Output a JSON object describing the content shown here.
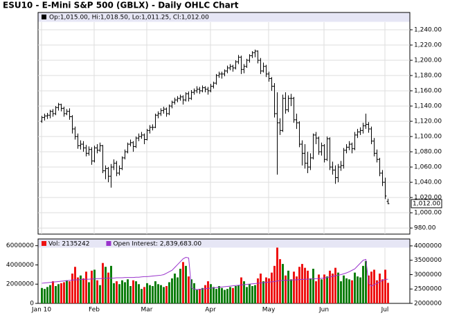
{
  "chart_data": [
    {
      "type": "ohlc",
      "title": "ESU10 - E-Mini S&P 500 (GBLX) - Daily OHLC Chart",
      "info": "Op:1,015.00, Hi:1,018.50, Lo:1,011.25, Cl:1,012.00",
      "last_label": "1,012.00",
      "color": "#000000",
      "grid": true,
      "categories": [
        "Jan 10",
        null,
        null,
        null,
        null,
        null,
        null,
        null,
        null,
        null,
        null,
        null,
        null,
        null,
        null,
        null,
        null,
        null,
        null,
        "Feb",
        null,
        null,
        null,
        null,
        null,
        null,
        null,
        null,
        null,
        null,
        null,
        null,
        null,
        null,
        null,
        null,
        null,
        null,
        "Mar",
        null,
        null,
        null,
        null,
        null,
        null,
        null,
        null,
        null,
        null,
        null,
        null,
        null,
        null,
        null,
        null,
        null,
        null,
        null,
        null,
        null,
        null,
        "Apr",
        null,
        null,
        null,
        null,
        null,
        null,
        null,
        null,
        null,
        null,
        null,
        null,
        null,
        null,
        null,
        null,
        null,
        null,
        null,
        null,
        "May",
        null,
        null,
        null,
        null,
        null,
        null,
        null,
        null,
        null,
        null,
        null,
        null,
        null,
        null,
        null,
        null,
        null,
        null,
        null,
        "Jun",
        null,
        null,
        null,
        null,
        null,
        null,
        null,
        null,
        null,
        null,
        null,
        null,
        null,
        null,
        null,
        null,
        null,
        null,
        null,
        null,
        null,
        "Jul",
        null
      ],
      "ohlc": [
        [
          1120,
          1127,
          1118,
          1125
        ],
        [
          1125,
          1130,
          1121,
          1127
        ],
        [
          1127,
          1131,
          1123,
          1128
        ],
        [
          1128,
          1135,
          1124,
          1133
        ],
        [
          1133,
          1136,
          1126,
          1130
        ],
        [
          1130,
          1140,
          1128,
          1138
        ],
        [
          1138,
          1144,
          1134,
          1142
        ],
        [
          1142,
          1143,
          1133,
          1137
        ],
        [
          1137,
          1139,
          1126,
          1130
        ],
        [
          1130,
          1136,
          1128,
          1133
        ],
        [
          1133,
          1137,
          1122,
          1126
        ],
        [
          1126,
          1128,
          1104,
          1110
        ],
        [
          1110,
          1113,
          1096,
          1100
        ],
        [
          1100,
          1104,
          1084,
          1088
        ],
        [
          1088,
          1095,
          1083,
          1090
        ],
        [
          1090,
          1094,
          1080,
          1085
        ],
        [
          1085,
          1089,
          1074,
          1078
        ],
        [
          1078,
          1087,
          1075,
          1083
        ],
        [
          1083,
          1086,
          1063,
          1068
        ],
        [
          1068,
          1088,
          1066,
          1085
        ],
        [
          1085,
          1090,
          1078,
          1082
        ],
        [
          1082,
          1092,
          1080,
          1088
        ],
        [
          1088,
          1089,
          1052,
          1055
        ],
        [
          1055,
          1062,
          1044,
          1058
        ],
        [
          1058,
          1060,
          1040,
          1048
        ],
        [
          1048,
          1064,
          1033,
          1060
        ],
        [
          1060,
          1070,
          1056,
          1065
        ],
        [
          1065,
          1068,
          1048,
          1052
        ],
        [
          1052,
          1062,
          1049,
          1058
        ],
        [
          1058,
          1074,
          1056,
          1072
        ],
        [
          1072,
          1083,
          1070,
          1080
        ],
        [
          1080,
          1092,
          1078,
          1090
        ],
        [
          1090,
          1096,
          1087,
          1092
        ],
        [
          1092,
          1094,
          1080,
          1087
        ],
        [
          1087,
          1100,
          1085,
          1098
        ],
        [
          1098,
          1104,
          1094,
          1100
        ],
        [
          1100,
          1106,
          1097,
          1102
        ],
        [
          1102,
          1104,
          1090,
          1096
        ],
        [
          1096,
          1110,
          1095,
          1108
        ],
        [
          1108,
          1115,
          1104,
          1112
        ],
        [
          1112,
          1116,
          1108,
          1112
        ],
        [
          1112,
          1130,
          1111,
          1128
        ],
        [
          1128,
          1133,
          1124,
          1130
        ],
        [
          1130,
          1137,
          1127,
          1134
        ],
        [
          1134,
          1139,
          1130,
          1136
        ],
        [
          1136,
          1138,
          1126,
          1130
        ],
        [
          1130,
          1142,
          1128,
          1140
        ],
        [
          1140,
          1147,
          1137,
          1145
        ],
        [
          1145,
          1151,
          1142,
          1148
        ],
        [
          1148,
          1153,
          1145,
          1150
        ],
        [
          1150,
          1155,
          1147,
          1152
        ],
        [
          1152,
          1154,
          1142,
          1148
        ],
        [
          1148,
          1158,
          1146,
          1156
        ],
        [
          1156,
          1159,
          1146,
          1150
        ],
        [
          1150,
          1161,
          1148,
          1158
        ],
        [
          1158,
          1163,
          1155,
          1160
        ],
        [
          1160,
          1166,
          1157,
          1162
        ],
        [
          1162,
          1165,
          1156,
          1160
        ],
        [
          1160,
          1167,
          1158,
          1164
        ],
        [
          1164,
          1166,
          1158,
          1162
        ],
        [
          1162,
          1165,
          1155,
          1160
        ],
        [
          1160,
          1169,
          1158,
          1166
        ],
        [
          1166,
          1172,
          1163,
          1170
        ],
        [
          1170,
          1182,
          1168,
          1180
        ],
        [
          1180,
          1185,
          1177,
          1182
        ],
        [
          1182,
          1185,
          1176,
          1182
        ],
        [
          1182,
          1188,
          1179,
          1186
        ],
        [
          1186,
          1193,
          1183,
          1190
        ],
        [
          1190,
          1195,
          1187,
          1192
        ],
        [
          1192,
          1194,
          1185,
          1190
        ],
        [
          1190,
          1200,
          1188,
          1198
        ],
        [
          1198,
          1207,
          1195,
          1204
        ],
        [
          1204,
          1206,
          1182,
          1188
        ],
        [
          1188,
          1195,
          1183,
          1192
        ],
        [
          1192,
          1202,
          1190,
          1200
        ],
        [
          1200,
          1208,
          1197,
          1206
        ],
        [
          1206,
          1212,
          1203,
          1210
        ],
        [
          1210,
          1214,
          1204,
          1212
        ],
        [
          1212,
          1213,
          1196,
          1200
        ],
        [
          1200,
          1203,
          1182,
          1186
        ],
        [
          1186,
          1197,
          1184,
          1192
        ],
        [
          1192,
          1194,
          1178,
          1182
        ],
        [
          1182,
          1185,
          1172,
          1176
        ],
        [
          1176,
          1178,
          1160,
          1166
        ],
        [
          1166,
          1170,
          1125,
          1130
        ],
        [
          1130,
          1158,
          1050,
          1118
        ],
        [
          1118,
          1124,
          1102,
          1108
        ],
        [
          1108,
          1155,
          1106,
          1150
        ],
        [
          1150,
          1158,
          1130,
          1135
        ],
        [
          1135,
          1154,
          1132,
          1150
        ],
        [
          1150,
          1156,
          1140,
          1150
        ],
        [
          1150,
          1152,
          1118,
          1122
        ],
        [
          1122,
          1130,
          1110,
          1118
        ],
        [
          1118,
          1120,
          1086,
          1090
        ],
        [
          1090,
          1095,
          1062,
          1078
        ],
        [
          1078,
          1090,
          1058,
          1065
        ],
        [
          1065,
          1080,
          1052,
          1060
        ],
        [
          1060,
          1078,
          1056,
          1072
        ],
        [
          1072,
          1104,
          1070,
          1102
        ],
        [
          1102,
          1106,
          1090,
          1098
        ],
        [
          1098,
          1100,
          1076,
          1080
        ],
        [
          1080,
          1092,
          1075,
          1088
        ],
        [
          1088,
          1090,
          1066,
          1070
        ],
        [
          1070,
          1100,
          1068,
          1097
        ],
        [
          1097,
          1099,
          1056,
          1060
        ],
        [
          1060,
          1067,
          1050,
          1056
        ],
        [
          1056,
          1062,
          1038,
          1046
        ],
        [
          1046,
          1064,
          1040,
          1060
        ],
        [
          1060,
          1068,
          1055,
          1062
        ],
        [
          1062,
          1085,
          1058,
          1082
        ],
        [
          1082,
          1090,
          1078,
          1086
        ],
        [
          1086,
          1094,
          1082,
          1090
        ],
        [
          1090,
          1092,
          1078,
          1084
        ],
        [
          1084,
          1106,
          1082,
          1102
        ],
        [
          1102,
          1110,
          1098,
          1106
        ],
        [
          1106,
          1112,
          1102,
          1108
        ],
        [
          1108,
          1118,
          1104,
          1114
        ],
        [
          1114,
          1130,
          1110,
          1116
        ],
        [
          1116,
          1119,
          1105,
          1110
        ],
        [
          1110,
          1113,
          1090,
          1094
        ],
        [
          1094,
          1098,
          1074,
          1078
        ],
        [
          1078,
          1083,
          1066,
          1070
        ],
        [
          1070,
          1072,
          1048,
          1052
        ],
        [
          1052,
          1056,
          1035,
          1040
        ],
        [
          1040,
          1046,
          1018,
          1022
        ],
        [
          1015,
          1018.5,
          1011.25,
          1012
        ]
      ],
      "ylim": [
        972,
        1250
      ],
      "yticks": [
        {
          "value": 980,
          "label": "980.00"
        },
        {
          "value": 1000,
          "label": "1,000.00"
        },
        {
          "value": 1020,
          "label": "1,020.00"
        },
        {
          "value": 1040,
          "label": "1,040.00"
        },
        {
          "value": 1060,
          "label": "1,060.00"
        },
        {
          "value": 1080,
          "label": "1,080.00"
        },
        {
          "value": 1100,
          "label": "1,100.00"
        },
        {
          "value": 1120,
          "label": "1,120.00"
        },
        {
          "value": 1140,
          "label": "1,140.00"
        },
        {
          "value": 1160,
          "label": "1,160.00"
        },
        {
          "value": 1180,
          "label": "1,180.00"
        },
        {
          "value": 1200,
          "label": "1,200.00"
        },
        {
          "value": 1220,
          "label": "1,220.00"
        },
        {
          "value": 1240,
          "label": "1,240.00"
        }
      ]
    },
    {
      "type": "bar",
      "up_color": "#0a7d0a",
      "down_color": "#ee1111",
      "series": [
        {
          "name": "Vol: 2135242",
          "color": "#ee1111",
          "values": [
            1600000,
            1500000,
            1700000,
            1900000,
            2300000,
            1800000,
            2000000,
            2100000,
            2200000,
            2400000,
            2300000,
            3100000,
            3800000,
            2700000,
            2900000,
            2600000,
            3300000,
            2200000,
            3400000,
            3500000,
            2400000,
            1900000,
            4200000,
            3800000,
            3200000,
            3900000,
            2100000,
            2300000,
            2000000,
            2400000,
            2200000,
            2500000,
            1800000,
            2400000,
            2300000,
            2000000,
            1500000,
            1700000,
            2100000,
            1900000,
            1800000,
            2300000,
            2000000,
            1900000,
            1700000,
            1800000,
            2200000,
            2600000,
            3100000,
            2700000,
            3600000,
            4300000,
            3900000,
            2800000,
            2500000,
            2100000,
            1400000,
            1500000,
            1600000,
            1900000,
            2300000,
            2000000,
            1700000,
            1500000,
            1800000,
            1600000,
            1400000,
            1500000,
            1700000,
            1600000,
            1800000,
            1900000,
            2700000,
            2300000,
            1700000,
            2000000,
            1800000,
            1900000,
            2600000,
            3100000,
            2300000,
            2700000,
            2600000,
            3200000,
            3900000,
            5800000,
            4600000,
            4100000,
            2900000,
            3400000,
            2500000,
            3300000,
            2800000,
            3800000,
            4100000,
            3700000,
            3400000,
            2600000,
            3600000,
            2300000,
            3000000,
            2500000,
            3000000,
            2800000,
            3400000,
            3100000,
            3700000,
            3200000,
            2300000,
            2900000,
            2600000,
            2500000,
            2400000,
            3200000,
            2800000,
            2700000,
            3900000,
            4400000,
            2900000,
            3300000,
            3500000,
            2400000,
            3100000,
            2500000,
            3500000,
            2135242
          ]
        },
        {
          "name": "Open Interest: 2,839,683.00",
          "color": "#9933cc",
          "axis": "y2",
          "values": [
            2700000,
            2710000,
            2720000,
            2730000,
            2740000,
            2750000,
            2760000,
            2770000,
            2780000,
            2790000,
            2800000,
            2810000,
            2820000,
            2820000,
            2830000,
            2830000,
            2840000,
            2840000,
            2850000,
            2850000,
            2860000,
            2860000,
            2870000,
            2870000,
            2880000,
            2880000,
            2880000,
            2890000,
            2890000,
            2890000,
            2900000,
            2900000,
            2900000,
            2900000,
            2910000,
            2910000,
            2920000,
            2930000,
            2930000,
            2940000,
            2950000,
            2960000,
            2970000,
            2980000,
            3000000,
            3050000,
            3100000,
            3150000,
            3250000,
            3350000,
            3450000,
            3550000,
            3600000,
            3580000,
            2550000,
            2500000,
            2480000,
            2490000,
            2500000,
            2510000,
            2520000,
            2530000,
            2540000,
            2550000,
            2560000,
            2570000,
            2580000,
            2590000,
            2600000,
            2610000,
            2620000,
            2630000,
            2640000,
            2650000,
            2660000,
            2670000,
            2680000,
            2690000,
            2700000,
            2710000,
            2720000,
            2730000,
            2740000,
            2750000,
            2760000,
            2780000,
            2790000,
            2800000,
            2800000,
            2810000,
            2810000,
            2820000,
            2820000,
            2830000,
            2830000,
            2840000,
            2840000,
            2850000,
            2850000,
            2860000,
            2860000,
            2870000,
            2880000,
            2900000,
            2920000,
            2940000,
            2960000,
            2980000,
            3000000,
            3030000,
            3060000,
            3100000,
            3150000,
            3200000,
            3300000,
            3400000,
            3500000,
            3530000,
            2700000,
            2600000,
            2650000,
            2700000,
            2750000,
            2800000,
            2830000,
            2839683
          ]
        }
      ],
      "ylim": [
        0,
        6700000
      ],
      "yticks": [
        0,
        2000000,
        4000000,
        6000000
      ],
      "y2lim": [
        2000000,
        4240000
      ],
      "y2ticks": [
        2000000,
        2500000,
        3000000,
        3500000,
        4000000
      ]
    }
  ]
}
